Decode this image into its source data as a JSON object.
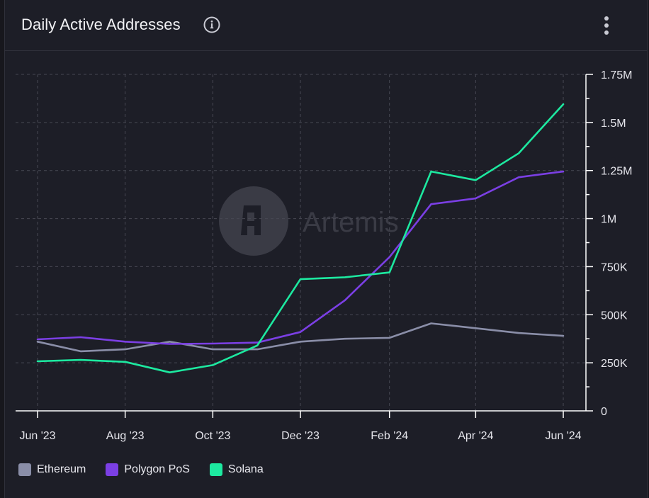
{
  "header": {
    "title": "Daily Active Addresses",
    "info_icon": "info-icon",
    "menu_icon": "more-vertical-icon"
  },
  "watermark": {
    "text": "Artemis"
  },
  "colors": {
    "background": "#1d1e27",
    "grid": "#474853",
    "axis": "#ffffff",
    "text": "#e6e6ec"
  },
  "chart_data": {
    "type": "line",
    "x": [
      "2023-06-01",
      "2023-07-01",
      "2023-08-01",
      "2023-09-01",
      "2023-10-01",
      "2023-11-01",
      "2023-12-01",
      "2024-01-01",
      "2024-02-01",
      "2024-03-01",
      "2024-04-01",
      "2024-05-01",
      "2024-06-01"
    ],
    "x_tick_labels": [
      "Jun '23",
      "Aug '23",
      "Oct '23",
      "Dec '23",
      "Feb '24",
      "Apr '24",
      "Jun '24"
    ],
    "y_tick_labels": [
      "0",
      "250K",
      "500K",
      "750K",
      "1M",
      "1.25M",
      "1.5M",
      "1.75M"
    ],
    "ylim": [
      0,
      1750000
    ],
    "grid": true,
    "legend_position": "bottom-left",
    "series": [
      {
        "name": "Ethereum",
        "color": "#8a8ea8",
        "values": [
          360000,
          310000,
          320000,
          360000,
          320000,
          320000,
          360000,
          375000,
          380000,
          455000,
          430000,
          405000,
          390000
        ]
      },
      {
        "name": "Polygon PoS",
        "color": "#7b3fe4",
        "values": [
          372000,
          383000,
          360000,
          348000,
          350000,
          355000,
          410000,
          575000,
          800000,
          1075000,
          1105000,
          1215000,
          1245000
        ]
      },
      {
        "name": "Solana",
        "color": "#1de9a0",
        "values": [
          258000,
          265000,
          255000,
          200000,
          238000,
          340000,
          685000,
          695000,
          720000,
          1245000,
          1200000,
          1340000,
          1595000
        ]
      }
    ]
  }
}
